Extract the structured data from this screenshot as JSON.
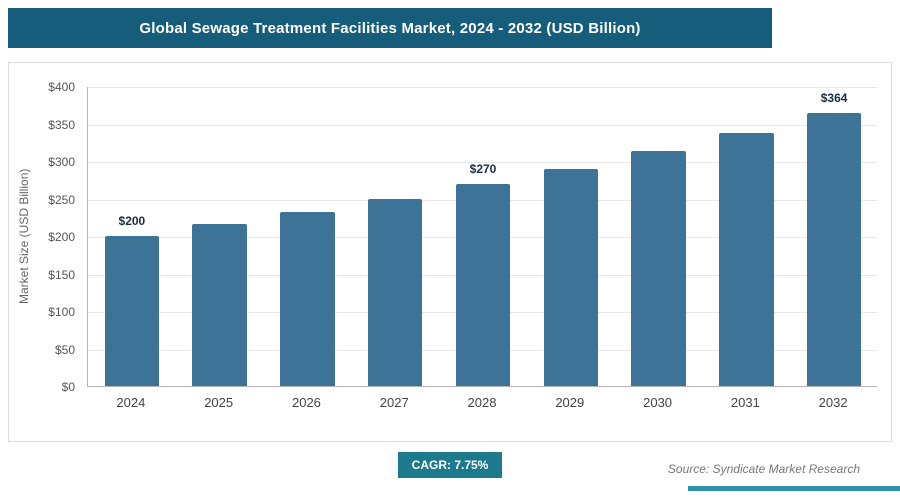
{
  "header": {
    "title": "Global Sewage Treatment Facilities Market, 2024 - 2032 (USD Billion)"
  },
  "footer": {
    "cagr_label": "CAGR: 7.75%",
    "source": "Source: Syndicate Market Research"
  },
  "colors": {
    "header_bg": "#165d7c",
    "bar": "#3d7396",
    "badge_bg": "#1d7a8c",
    "source_accent": "#2e93a6"
  },
  "chart_data": {
    "type": "bar",
    "title": "Global Sewage Treatment Facilities Market, 2024 - 2032 (USD Billion)",
    "categories": [
      "2024",
      "2025",
      "2026",
      "2027",
      "2028",
      "2029",
      "2030",
      "2031",
      "2032"
    ],
    "values": [
      200,
      216,
      232,
      250,
      270,
      290,
      313,
      337,
      364
    ],
    "point_labels": [
      "$200",
      "",
      "",
      "",
      "$270",
      "",
      "",
      "",
      "$364"
    ],
    "xlabel": "",
    "ylabel": "Market Size (USD Billion)",
    "ylim": [
      0,
      400
    ],
    "ytick_step": 50,
    "ytick_labels": [
      "$0",
      "$50",
      "$100",
      "$150",
      "$200",
      "$250",
      "$300",
      "$350",
      "$400"
    ],
    "grid": true,
    "legend": false,
    "cagr": "7.75%"
  }
}
